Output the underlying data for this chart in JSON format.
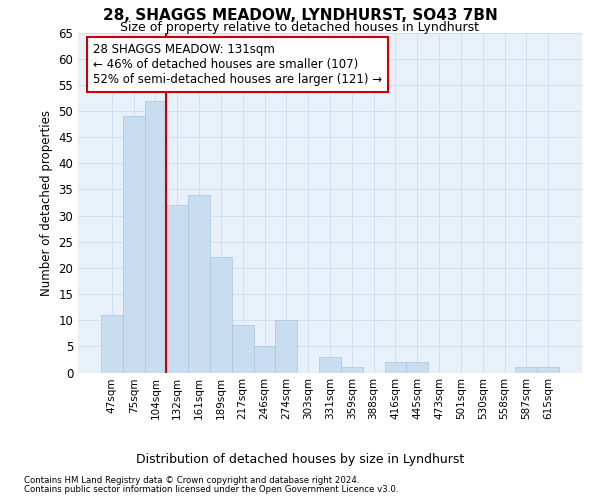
{
  "title": "28, SHAGGS MEADOW, LYNDHURST, SO43 7BN",
  "subtitle": "Size of property relative to detached houses in Lyndhurst",
  "xlabel": "Distribution of detached houses by size in Lyndhurst",
  "ylabel": "Number of detached properties",
  "categories": [
    "47sqm",
    "75sqm",
    "104sqm",
    "132sqm",
    "161sqm",
    "189sqm",
    "217sqm",
    "246sqm",
    "274sqm",
    "303sqm",
    "331sqm",
    "359sqm",
    "388sqm",
    "416sqm",
    "445sqm",
    "473sqm",
    "501sqm",
    "530sqm",
    "558sqm",
    "587sqm",
    "615sqm"
  ],
  "values": [
    11,
    49,
    52,
    32,
    34,
    22,
    9,
    5,
    10,
    0,
    3,
    1,
    0,
    2,
    2,
    0,
    0,
    0,
    0,
    1,
    1
  ],
  "bar_color": "#c9ddf0",
  "bar_edge_color": "#a8c4e0",
  "ylim": [
    0,
    65
  ],
  "yticks": [
    0,
    5,
    10,
    15,
    20,
    25,
    30,
    35,
    40,
    45,
    50,
    55,
    60,
    65
  ],
  "marker_bin_index": 2,
  "marker_label_line1": "28 SHAGGS MEADOW: 131sqm",
  "marker_label_line2": "← 46% of detached houses are smaller (107)",
  "marker_label_line3": "52% of semi-detached houses are larger (121) →",
  "marker_color": "#cc0000",
  "grid_color": "#d0dff0",
  "bg_color": "#e8f0fa",
  "footer_line1": "Contains HM Land Registry data © Crown copyright and database right 2024.",
  "footer_line2": "Contains public sector information licensed under the Open Government Licence v3.0."
}
